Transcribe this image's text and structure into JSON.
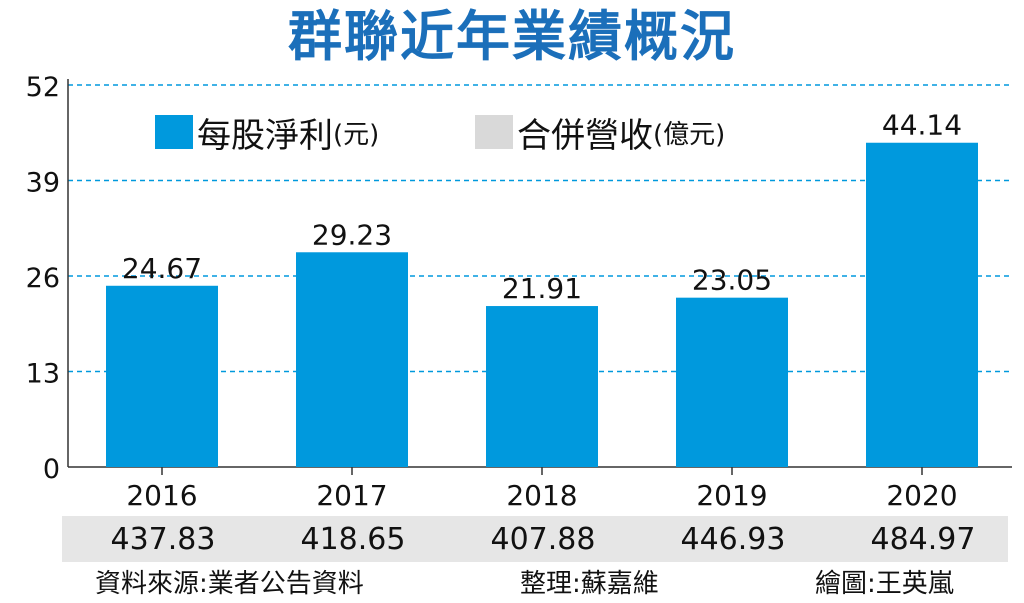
{
  "title": "群聯近年業績概況",
  "legend": {
    "eps_label": "每股淨利",
    "eps_unit": "(元)",
    "revenue_label": "合併營收",
    "revenue_unit": "(億元)"
  },
  "colors": {
    "bar": "#0099dd",
    "title": "#1b6fba",
    "grid": "#0099dd",
    "revenue_strip": "#e6e6e6",
    "revenue_swatch": "#d9d9d9"
  },
  "chart_data": {
    "type": "bar",
    "categories": [
      "2016",
      "2017",
      "2018",
      "2019",
      "2020"
    ],
    "series": [
      {
        "name": "每股淨利(元)",
        "values": [
          24.67,
          29.23,
          21.91,
          23.05,
          44.14
        ]
      }
    ],
    "data_labels": [
      "24.67",
      "29.23",
      "21.91",
      "23.05",
      "44.14"
    ],
    "yticks": [
      0,
      13,
      26,
      39,
      52
    ],
    "ylim": [
      0,
      52
    ],
    "grid": true,
    "legend_position": "top",
    "revenue_row": {
      "name": "合併營收(億元)",
      "values": [
        "437.83",
        "418.65",
        "407.88",
        "446.93",
        "484.97"
      ]
    }
  },
  "footer": {
    "source": "資料來源:業者公告資料",
    "editor": "整理:蘇嘉維",
    "artist": "繪圖:王英嵐"
  }
}
